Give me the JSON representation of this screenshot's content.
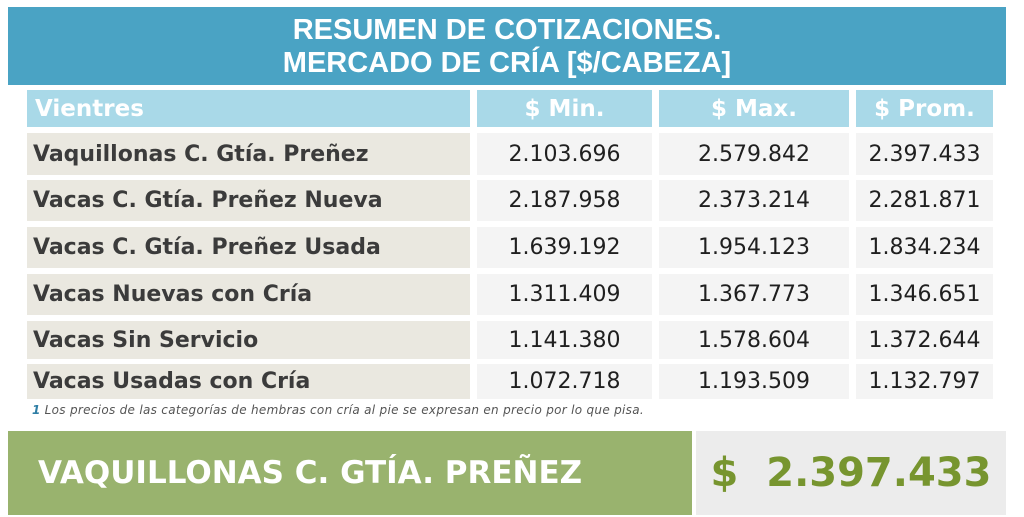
{
  "title": {
    "line1": "RESUMEN DE COTIZACIONES.",
    "line2": "MERCADO DE CRÍA [$/CABEZA]"
  },
  "table": {
    "headers": [
      "Vientres",
      "$ Min.",
      "$ Max.",
      "$ Prom."
    ],
    "rows": [
      {
        "label": "Vaquillonas C. Gtía. Preñez",
        "min": "2.103.696",
        "max": "2.579.842",
        "prom": "2.397.433"
      },
      {
        "label": "Vacas C. Gtía. Preñez Nueva",
        "min": "2.187.958",
        "max": "2.373.214",
        "prom": "2.281.871"
      },
      {
        "label": "Vacas C. Gtía. Preñez Usada",
        "min": "1.639.192",
        "max": "1.954.123",
        "prom": "1.834.234"
      },
      {
        "label": "Vacas Nuevas con Cría",
        "min": "1.311.409",
        "max": "1.367.773",
        "prom": "1.346.651"
      },
      {
        "label": "Vacas Sin Servicio",
        "min": "1.141.380",
        "max": "1.578.604",
        "prom": "1.372.644"
      },
      {
        "label": "Vacas Usadas con Cría",
        "min": "1.072.718",
        "max": "1.193.509",
        "prom": "1.132.797"
      }
    ]
  },
  "footnote": {
    "number": "1",
    "text": "Los precios de las categorías de hembras con cría al pie se expresan en precio por lo que pisa."
  },
  "summary": {
    "label": "VAQUILLONAS C. GTÍA. PREÑEZ",
    "value": "$  2.397.433"
  },
  "colors": {
    "banner": "#4aa3c4",
    "header": "#a9d9e8",
    "label_bg": "#eae8e0",
    "summary_green": "#99b36e",
    "summary_value": "#77952f"
  }
}
